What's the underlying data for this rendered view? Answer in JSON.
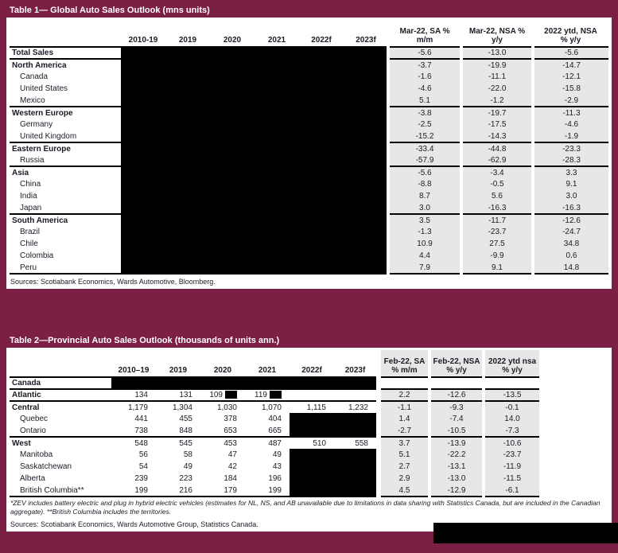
{
  "colors": {
    "accent_maroon": "#7b1f44",
    "cell_gray": "#e7e7e7",
    "redaction_black": "#000000"
  },
  "table1": {
    "title": "Table 1— Global Auto Sales Outlook (mns units)",
    "year_columns": [
      "2010-19",
      "2019",
      "2020",
      "2021",
      "2022f",
      "2023f"
    ],
    "pct_columns": [
      {
        "line1": "Mar-22, SA %",
        "line2": "m/m"
      },
      {
        "line1": "Mar-22, NSA %",
        "line2": "y/y"
      },
      {
        "line1": "2022 ytd, NSA",
        "line2": "% y/y"
      }
    ],
    "rows": [
      {
        "label": "Total Sales",
        "bold": true,
        "pct": [
          "-5.6",
          "-13.0",
          "-5.6"
        ]
      },
      {
        "label": "North America",
        "bold": true,
        "sec": true,
        "pct": [
          "-3.7",
          "-19.9",
          "-14.7"
        ]
      },
      {
        "label": "Canada",
        "pct": [
          "-1.6",
          "-11.1",
          "-12.1"
        ]
      },
      {
        "label": "United States",
        "pct": [
          "-4.6",
          "-22.0",
          "-15.8"
        ]
      },
      {
        "label": "Mexico",
        "pct": [
          "5.1",
          "-1.2",
          "-2.9"
        ]
      },
      {
        "label": "Western Europe",
        "bold": true,
        "sec": true,
        "pct": [
          "-3.8",
          "-19.7",
          "-11.3"
        ]
      },
      {
        "label": "Germany",
        "pct": [
          "-2.5",
          "-17.5",
          "-4.6"
        ]
      },
      {
        "label": "United Kingdom",
        "pct": [
          "-15.2",
          "-14.3",
          "-1.9"
        ]
      },
      {
        "label": "Eastern Europe",
        "bold": true,
        "sec": true,
        "pct": [
          "-33.4",
          "-44.8",
          "-23.3"
        ]
      },
      {
        "label": "Russia",
        "pct": [
          "-57.9",
          "-62.9",
          "-28.3"
        ]
      },
      {
        "label": "Asia",
        "bold": true,
        "sec": true,
        "pct": [
          "-5.6",
          "-3.4",
          "3.3"
        ]
      },
      {
        "label": "China",
        "pct": [
          "-8.8",
          "-0.5",
          "9.1"
        ]
      },
      {
        "label": "India",
        "pct": [
          "8.7",
          "5.6",
          "3.0"
        ]
      },
      {
        "label": "Japan",
        "pct": [
          "3.0",
          "-16.3",
          "-16.3"
        ]
      },
      {
        "label": "South America",
        "bold": true,
        "sec": true,
        "pct": [
          "3.5",
          "-11.7",
          "-12.6"
        ]
      },
      {
        "label": "Brazil",
        "pct": [
          "-1.3",
          "-23.7",
          "-24.7"
        ]
      },
      {
        "label": "Chile",
        "pct": [
          "10.9",
          "27.5",
          "34.8"
        ]
      },
      {
        "label": "Colombia",
        "pct": [
          "4.4",
          "-9.9",
          "0.6"
        ]
      },
      {
        "label": "Peru",
        "pct": [
          "7.9",
          "9.1",
          "14.8"
        ]
      }
    ],
    "sources": "Sources: Scotiabank Economics, Wards Automotive, Bloomberg."
  },
  "table2": {
    "title": "Table 2—Provincial Auto Sales Outlook (thousands of units ann.)",
    "year_columns": [
      "2010–19",
      "2019",
      "2020",
      "2021",
      "2022f",
      "2023f"
    ],
    "pct_columns": [
      {
        "line1": "Feb-22, SA",
        "line2": "% m/m"
      },
      {
        "line1": "Feb-22, NSA",
        "line2": "% y/y"
      },
      {
        "line1": "2022 ytd nsa",
        "line2": "% y/y"
      }
    ],
    "rows": [
      {
        "label": "Canada",
        "bold": true,
        "redact_all": true,
        "years": [
          "",
          "",
          "",
          "",
          "",
          ""
        ],
        "pct": [
          "",
          "",
          ""
        ],
        "pct_plain": true
      },
      {
        "label": "Atlantic",
        "bold": true,
        "sec": true,
        "years": [
          "134",
          "131",
          "109",
          "119",
          "",
          ""
        ],
        "redact_after": [
          2,
          3
        ],
        "pct": [
          "2.2",
          "-12.6",
          "-13.5"
        ]
      },
      {
        "label": "Central",
        "bold": true,
        "sec": true,
        "years": [
          "1,179",
          "1,304",
          "1,030",
          "1,070",
          "1,115",
          "1,232"
        ],
        "pct": [
          "-1.1",
          "-9.3",
          "-0.1"
        ]
      },
      {
        "label": "Quebec",
        "years": [
          "441",
          "455",
          "378",
          "404",
          "",
          ""
        ],
        "redact": [
          4,
          5
        ],
        "pct": [
          "1.4",
          "-7.4",
          "14.0"
        ]
      },
      {
        "label": "Ontario",
        "years": [
          "738",
          "848",
          "653",
          "665",
          "",
          ""
        ],
        "redact": [
          4,
          5
        ],
        "pct": [
          "-2.7",
          "-10.5",
          "-7.3"
        ]
      },
      {
        "label": "West",
        "bold": true,
        "sec": true,
        "years": [
          "548",
          "545",
          "453",
          "487",
          "510",
          "558"
        ],
        "pct": [
          "3.7",
          "-13.9",
          "-10.6"
        ]
      },
      {
        "label": "Manitoba",
        "years": [
          "56",
          "58",
          "47",
          "49",
          "",
          ""
        ],
        "redact": [
          4,
          5
        ],
        "pct": [
          "5.1",
          "-22.2",
          "-23.7"
        ]
      },
      {
        "label": "Saskatchewan",
        "years": [
          "54",
          "49",
          "42",
          "43",
          "",
          ""
        ],
        "redact": [
          4,
          5
        ],
        "pct": [
          "2.7",
          "-13.1",
          "-11.9"
        ]
      },
      {
        "label": "Alberta",
        "years": [
          "239",
          "223",
          "184",
          "196",
          "",
          ""
        ],
        "redact": [
          4,
          5
        ],
        "pct": [
          "2.9",
          "-13.0",
          "-11.5"
        ]
      },
      {
        "label": "British Columbia**",
        "years": [
          "199",
          "216",
          "179",
          "199",
          "",
          ""
        ],
        "redact": [
          4,
          5
        ],
        "pct": [
          "4.5",
          "-12.9",
          "-6.1"
        ]
      }
    ],
    "footnote": "*ZEV includes battery electric and plug in hybrid electric vehicles (estimates for NL, NS, and AB unavailable due to limitations in data sharing with Statistics Canada, but are included in the Canadian aggregate). **British Columbia includes the territories.",
    "sources": "Sources: Scotiabank Economics, Wards Automotive Group, Statistics Canada."
  }
}
